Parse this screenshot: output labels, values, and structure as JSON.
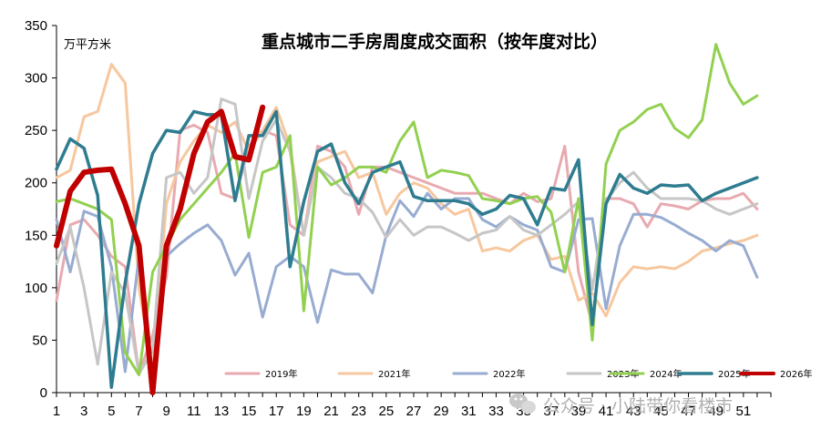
{
  "chart_data": {
    "type": "line",
    "title": "重点城市二手房周度成交面积（按年度对比）",
    "unit": "万平方米",
    "ylim": [
      0,
      350
    ],
    "yticks": [
      0,
      50,
      100,
      150,
      200,
      250,
      300,
      350
    ],
    "xlim": [
      1,
      53
    ],
    "xticks": [
      1,
      3,
      5,
      7,
      9,
      11,
      13,
      15,
      17,
      19,
      21,
      23,
      25,
      27,
      29,
      31,
      33,
      35,
      37,
      39,
      41,
      43,
      45,
      47,
      49,
      51
    ],
    "grid": false,
    "legend_position": "bottom-right",
    "series": [
      {
        "name": "2019年",
        "color": "#e8aab0",
        "width": 3,
        "values": [
          88,
          160,
          165,
          150,
          130,
          120,
          18,
          55,
          110,
          250,
          255,
          248,
          190,
          185,
          235,
          250,
          245,
          160,
          150,
          235,
          230,
          215,
          170,
          215,
          215,
          210,
          205,
          200,
          195,
          190,
          190,
          190,
          185,
          180,
          190,
          182,
          185,
          235,
          115,
          65,
          185,
          185,
          180,
          158,
          180,
          178,
          175,
          183,
          185,
          185,
          190,
          175
        ]
      },
      {
        "name": "2021年",
        "color": "#f7c79e",
        "width": 3,
        "values": [
          205,
          212,
          263,
          268,
          313,
          295,
          100,
          20,
          180,
          220,
          240,
          255,
          248,
          258,
          230,
          250,
          272,
          235,
          150,
          220,
          225,
          230,
          205,
          210,
          170,
          190,
          200,
          195,
          180,
          170,
          175,
          135,
          138,
          135,
          145,
          150,
          127,
          130,
          88,
          95,
          73,
          105,
          120,
          118,
          120,
          118,
          125,
          135,
          138,
          142,
          145,
          150
        ]
      },
      {
        "name": "2022年",
        "color": "#98acd1",
        "width": 3,
        "values": [
          165,
          115,
          173,
          168,
          120,
          20,
          130,
          10,
          130,
          142,
          152,
          160,
          145,
          112,
          133,
          72,
          120,
          130,
          120,
          67,
          117,
          113,
          113,
          95,
          150,
          183,
          168,
          190,
          175,
          185,
          185,
          165,
          158,
          168,
          160,
          155,
          120,
          115,
          165,
          166,
          80,
          140,
          170,
          170,
          167,
          160,
          152,
          145,
          135,
          145,
          140,
          110
        ]
      },
      {
        "name": "2023年",
        "color": "#c6c6c6",
        "width": 3,
        "values": [
          123,
          158,
          100,
          27,
          115,
          95,
          18,
          40,
          205,
          210,
          190,
          205,
          280,
          275,
          185,
          240,
          260,
          230,
          150,
          215,
          205,
          190,
          185,
          172,
          148,
          165,
          150,
          158,
          158,
          152,
          145,
          152,
          155,
          168,
          155,
          150,
          160,
          170,
          182,
          98,
          183,
          200,
          210,
          195,
          185,
          185,
          185,
          183,
          175,
          170,
          175,
          180
        ]
      },
      {
        "name": "2024年",
        "color": "#92d050",
        "width": 3,
        "values": [
          182,
          185,
          180,
          175,
          165,
          38,
          17,
          115,
          140,
          165,
          180,
          195,
          210,
          228,
          148,
          210,
          215,
          245,
          78,
          215,
          198,
          205,
          215,
          215,
          210,
          240,
          258,
          205,
          212,
          210,
          207,
          185,
          183,
          180,
          185,
          187,
          172,
          115,
          185,
          50,
          218,
          250,
          258,
          270,
          275,
          252,
          243,
          260,
          332,
          295,
          275,
          283
        ]
      },
      {
        "name": "2025年",
        "color": "#2e7c8f",
        "width": 3.5,
        "values": [
          213,
          242,
          233,
          188,
          5,
          105,
          180,
          228,
          250,
          248,
          268,
          265,
          265,
          183,
          245,
          245,
          268,
          120,
          182,
          230,
          237,
          200,
          180,
          210,
          215,
          220,
          187,
          183,
          183,
          183,
          180,
          170,
          175,
          188,
          185,
          160,
          195,
          193,
          222,
          65,
          180,
          208,
          195,
          190,
          198,
          197,
          198,
          183,
          190,
          195,
          200,
          205
        ]
      },
      {
        "name": "2026年",
        "color": "#c00000",
        "width": 6,
        "values": [
          140,
          192,
          210,
          212,
          213,
          180,
          140,
          0,
          140,
          175,
          228,
          258,
          268,
          225,
          222,
          272
        ]
      }
    ]
  },
  "watermark": "公众号 · 小陆带你看楼市"
}
